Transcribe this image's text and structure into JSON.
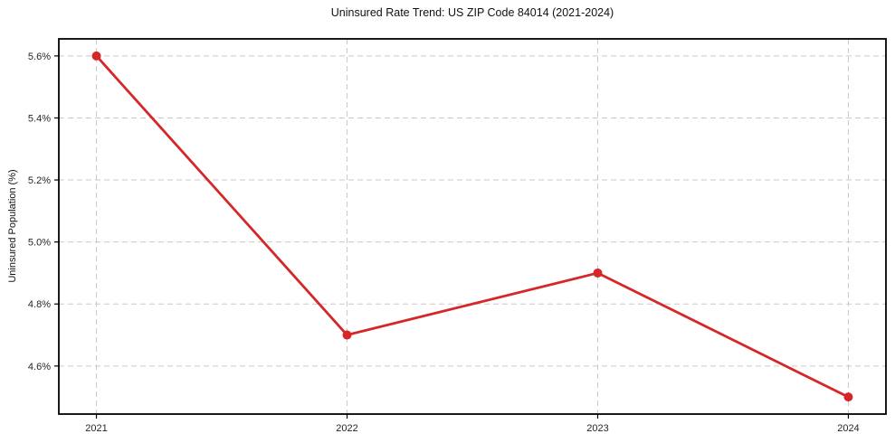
{
  "chart_data": {
    "type": "line",
    "title": "Uninsured Rate Trend: US ZIP Code 84014 (2021-2024)",
    "xlabel": "",
    "ylabel": "Uninsured Population (%)",
    "x": [
      2021,
      2022,
      2023,
      2024
    ],
    "x_tick_labels": [
      "2021",
      "2022",
      "2023",
      "2024"
    ],
    "series": [
      {
        "name": "uninsured-rate",
        "values": [
          5.6,
          4.7,
          4.9,
          4.5
        ]
      }
    ],
    "y_ticks": [
      4.6,
      4.8,
      5.0,
      5.2,
      5.4,
      5.6
    ],
    "y_tick_labels": [
      "4.6%",
      "4.8%",
      "5.0%",
      "5.2%",
      "5.4%",
      "5.6%"
    ],
    "xlim": [
      2020.85,
      2024.15
    ],
    "ylim": [
      4.445,
      5.655
    ],
    "grid": true,
    "grid_style": "dashed",
    "legend_position": "none",
    "colors": {
      "line": "#d62728",
      "marker": "#d62728",
      "grid": "#c9c9c9",
      "frame": "#000000",
      "background": "#ffffff",
      "tick_text": "#262626",
      "title_text": "#111111"
    }
  }
}
